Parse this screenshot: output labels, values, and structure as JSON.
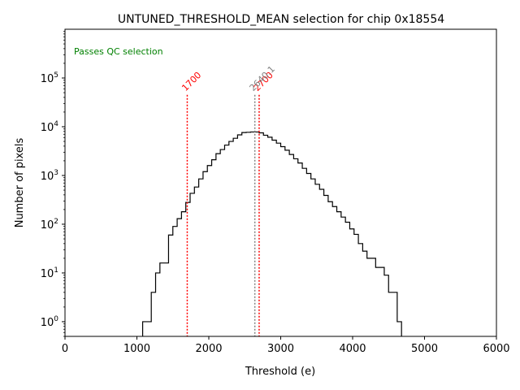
{
  "chart_data": {
    "type": "histogram",
    "title": "UNTUNED_THRESHOLD_MEAN selection for chip 0x18554",
    "xlabel": "Threshold (e)",
    "ylabel": "Number of pixels",
    "xlim": [
      0,
      6000
    ],
    "ylim": [
      0.5,
      1000000
    ],
    "yscale": "log",
    "x_ticks": [
      0,
      1000,
      2000,
      3000,
      4000,
      5000,
      6000
    ],
    "x_tick_labels": [
      "0",
      "1000",
      "2000",
      "3000",
      "4000",
      "5000",
      "6000"
    ],
    "y_tick_exponents": [
      0,
      1,
      2,
      3,
      4,
      5
    ],
    "y_tick_base": "10",
    "bin_width": 60,
    "bins": [
      {
        "x": 1080,
        "v": 1
      },
      {
        "x": 1140,
        "v": 1
      },
      {
        "x": 1200,
        "v": 4
      },
      {
        "x": 1260,
        "v": 10
      },
      {
        "x": 1320,
        "v": 16
      },
      {
        "x": 1380,
        "v": 16
      },
      {
        "x": 1440,
        "v": 60
      },
      {
        "x": 1500,
        "v": 90
      },
      {
        "x": 1560,
        "v": 130
      },
      {
        "x": 1620,
        "v": 180
      },
      {
        "x": 1680,
        "v": 280
      },
      {
        "x": 1740,
        "v": 430
      },
      {
        "x": 1800,
        "v": 580
      },
      {
        "x": 1860,
        "v": 850
      },
      {
        "x": 1920,
        "v": 1200
      },
      {
        "x": 1980,
        "v": 1600
      },
      {
        "x": 2040,
        "v": 2100
      },
      {
        "x": 2100,
        "v": 2800
      },
      {
        "x": 2160,
        "v": 3400
      },
      {
        "x": 2220,
        "v": 4200
      },
      {
        "x": 2280,
        "v": 5000
      },
      {
        "x": 2340,
        "v": 5800
      },
      {
        "x": 2400,
        "v": 6800
      },
      {
        "x": 2460,
        "v": 7600
      },
      {
        "x": 2520,
        "v": 7700
      },
      {
        "x": 2580,
        "v": 7800
      },
      {
        "x": 2640,
        "v": 7800
      },
      {
        "x": 2700,
        "v": 7500
      },
      {
        "x": 2760,
        "v": 6700
      },
      {
        "x": 2820,
        "v": 6100
      },
      {
        "x": 2880,
        "v": 5300
      },
      {
        "x": 2940,
        "v": 4600
      },
      {
        "x": 3000,
        "v": 3900
      },
      {
        "x": 3060,
        "v": 3300
      },
      {
        "x": 3120,
        "v": 2700
      },
      {
        "x": 3180,
        "v": 2200
      },
      {
        "x": 3240,
        "v": 1800
      },
      {
        "x": 3300,
        "v": 1400
      },
      {
        "x": 3360,
        "v": 1100
      },
      {
        "x": 3420,
        "v": 850
      },
      {
        "x": 3480,
        "v": 660
      },
      {
        "x": 3540,
        "v": 520
      },
      {
        "x": 3600,
        "v": 390
      },
      {
        "x": 3660,
        "v": 290
      },
      {
        "x": 3720,
        "v": 230
      },
      {
        "x": 3780,
        "v": 180
      },
      {
        "x": 3840,
        "v": 140
      },
      {
        "x": 3900,
        "v": 110
      },
      {
        "x": 3960,
        "v": 80
      },
      {
        "x": 4020,
        "v": 62
      },
      {
        "x": 4080,
        "v": 40
      },
      {
        "x": 4140,
        "v": 28
      },
      {
        "x": 4200,
        "v": 20
      },
      {
        "x": 4260,
        "v": 20
      },
      {
        "x": 4320,
        "v": 13
      },
      {
        "x": 4380,
        "v": 13
      },
      {
        "x": 4440,
        "v": 9
      },
      {
        "x": 4500,
        "v": 4
      },
      {
        "x": 4560,
        "v": 4
      },
      {
        "x": 4620,
        "v": 1
      }
    ],
    "vertical_lines": [
      {
        "x": 1700,
        "label": "1700",
        "color": "#ff0000",
        "label_rotation": 45
      },
      {
        "x": 2700,
        "label": "2700",
        "color": "#ff0000",
        "label_rotation": 45
      },
      {
        "x": 2640.1,
        "label": "2640.1",
        "color": "#808080",
        "label_rotation": 45
      }
    ],
    "annotation": {
      "text": "Passes QC selection",
      "color": "#008000",
      "placement": "top-left"
    },
    "histogram_color": "#000000",
    "grid": false
  }
}
